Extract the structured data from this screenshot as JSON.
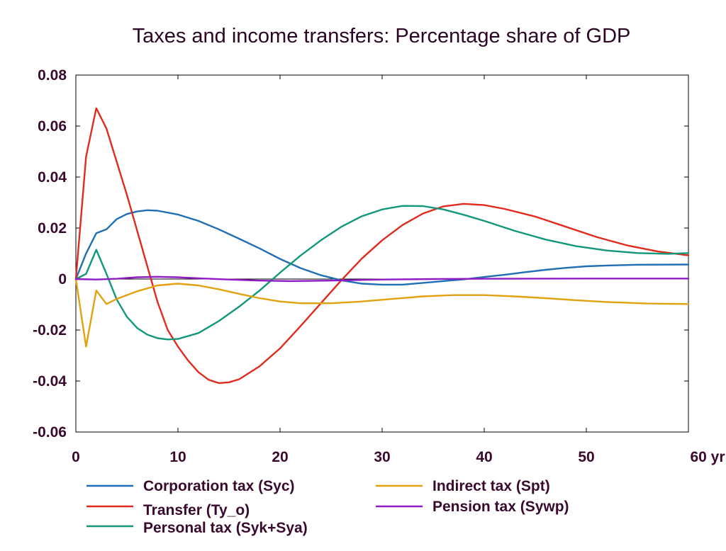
{
  "chart_data": {
    "type": "line",
    "title": "Taxes and income transfers: Percentage share of GDP",
    "xlabel": "",
    "ylabel": "",
    "xlim": [
      0,
      60
    ],
    "ylim": [
      -0.06,
      0.08
    ],
    "x_ticks": [
      0,
      10,
      20,
      30,
      40,
      50,
      60
    ],
    "x_tick_labels": [
      "0",
      "10",
      "20",
      "30",
      "40",
      "50",
      "60 yr"
    ],
    "y_ticks": [
      -0.06,
      -0.04,
      -0.02,
      0,
      0.02,
      0.04,
      0.06,
      0.08
    ],
    "y_tick_labels": [
      "-0.06",
      "-0.04",
      "-0.02",
      "0",
      "0.02",
      "0.04",
      "0.06",
      "0.08"
    ],
    "grid": false,
    "legend_position": "bottom",
    "series": [
      {
        "name": "Corporation tax (Syc)",
        "color": "#1f6fb4",
        "points": [
          [
            0,
            0
          ],
          [
            1,
            0.01
          ],
          [
            2,
            0.018
          ],
          [
            3,
            0.0195
          ],
          [
            4,
            0.0235
          ],
          [
            5,
            0.0255
          ],
          [
            6,
            0.0265
          ],
          [
            7,
            0.027
          ],
          [
            8,
            0.0268
          ],
          [
            10,
            0.0253
          ],
          [
            12,
            0.0228
          ],
          [
            14,
            0.0195
          ],
          [
            16,
            0.0158
          ],
          [
            18,
            0.012
          ],
          [
            20,
            0.0079
          ],
          [
            22,
            0.0043
          ],
          [
            24,
            0.0015
          ],
          [
            26,
            -0.0005
          ],
          [
            28,
            -0.0018
          ],
          [
            30,
            -0.0022
          ],
          [
            32,
            -0.0022
          ],
          [
            34,
            -0.0015
          ],
          [
            36,
            -0.0008
          ],
          [
            38,
            -0.0001
          ],
          [
            40,
            0.0008
          ],
          [
            42,
            0.0017
          ],
          [
            44,
            0.0027
          ],
          [
            46,
            0.0036
          ],
          [
            48,
            0.0044
          ],
          [
            50,
            0.005
          ],
          [
            52,
            0.0053
          ],
          [
            55,
            0.0056
          ],
          [
            60,
            0.0057
          ]
        ]
      },
      {
        "name": "Transfer (Ty_o)",
        "color": "#e02b1e",
        "points": [
          [
            0,
            0
          ],
          [
            1,
            0.048
          ],
          [
            2,
            0.067
          ],
          [
            3,
            0.059
          ],
          [
            4,
            0.046
          ],
          [
            5,
            0.033
          ],
          [
            6,
            0.019
          ],
          [
            7,
            0.005
          ],
          [
            8,
            -0.009
          ],
          [
            9,
            -0.02
          ],
          [
            10,
            -0.0265
          ],
          [
            11,
            -0.032
          ],
          [
            12,
            -0.0365
          ],
          [
            13,
            -0.0395
          ],
          [
            14,
            -0.0408
          ],
          [
            15,
            -0.0405
          ],
          [
            16,
            -0.0393
          ],
          [
            18,
            -0.0342
          ],
          [
            20,
            -0.0272
          ],
          [
            22,
            -0.0185
          ],
          [
            24,
            -0.0095
          ],
          [
            26,
            -0.0005
          ],
          [
            28,
            0.008
          ],
          [
            30,
            0.0152
          ],
          [
            32,
            0.0212
          ],
          [
            34,
            0.0257
          ],
          [
            36,
            0.0285
          ],
          [
            38,
            0.0295
          ],
          [
            40,
            0.029
          ],
          [
            42,
            0.0275
          ],
          [
            45,
            0.0245
          ],
          [
            48,
            0.0205
          ],
          [
            51,
            0.0165
          ],
          [
            54,
            0.0132
          ],
          [
            57,
            0.0108
          ],
          [
            60,
            0.0093
          ]
        ]
      },
      {
        "name": "Personal tax (Syk+Sya)",
        "color": "#12977a",
        "points": [
          [
            0,
            0
          ],
          [
            1,
            0.002
          ],
          [
            2,
            0.0115
          ],
          [
            3,
            0.002
          ],
          [
            4,
            -0.008
          ],
          [
            5,
            -0.0148
          ],
          [
            6,
            -0.0192
          ],
          [
            7,
            -0.0218
          ],
          [
            8,
            -0.0232
          ],
          [
            9,
            -0.0237
          ],
          [
            10,
            -0.0235
          ],
          [
            12,
            -0.0212
          ],
          [
            14,
            -0.0165
          ],
          [
            16,
            -0.0108
          ],
          [
            18,
            -0.0045
          ],
          [
            20,
            0.0025
          ],
          [
            22,
            0.0092
          ],
          [
            24,
            0.0152
          ],
          [
            26,
            0.0205
          ],
          [
            28,
            0.0246
          ],
          [
            30,
            0.0273
          ],
          [
            32,
            0.0287
          ],
          [
            34,
            0.0286
          ],
          [
            36,
            0.0273
          ],
          [
            38,
            0.0252
          ],
          [
            40,
            0.0228
          ],
          [
            43,
            0.0189
          ],
          [
            46,
            0.0155
          ],
          [
            49,
            0.0129
          ],
          [
            52,
            0.0112
          ],
          [
            55,
            0.0102
          ],
          [
            58,
            0.0099
          ],
          [
            60,
            0.0102
          ]
        ]
      },
      {
        "name": "Indirect tax (Spt)",
        "color": "#e0a20e",
        "points": [
          [
            0,
            0
          ],
          [
            1,
            -0.0265
          ],
          [
            2,
            -0.0045
          ],
          [
            3,
            -0.0098
          ],
          [
            4,
            -0.0078
          ],
          [
            6,
            -0.0048
          ],
          [
            8,
            -0.0025
          ],
          [
            10,
            -0.0018
          ],
          [
            12,
            -0.0025
          ],
          [
            14,
            -0.004
          ],
          [
            16,
            -0.0058
          ],
          [
            18,
            -0.0075
          ],
          [
            20,
            -0.0088
          ],
          [
            22,
            -0.0095
          ],
          [
            25,
            -0.0095
          ],
          [
            28,
            -0.0088
          ],
          [
            31,
            -0.0078
          ],
          [
            34,
            -0.0068
          ],
          [
            37,
            -0.0063
          ],
          [
            40,
            -0.0063
          ],
          [
            43,
            -0.0068
          ],
          [
            46,
            -0.0075
          ],
          [
            49,
            -0.0083
          ],
          [
            52,
            -0.009
          ],
          [
            56,
            -0.0096
          ],
          [
            60,
            -0.0098
          ]
        ]
      },
      {
        "name": "Pension tax (Sywp)",
        "color": "#8e1bc4",
        "points": [
          [
            0,
            0
          ],
          [
            2,
            -0.0002
          ],
          [
            4,
            0.0001
          ],
          [
            6,
            0.0007
          ],
          [
            8,
            0.0009
          ],
          [
            10,
            0.0007
          ],
          [
            12,
            0.0003
          ],
          [
            15,
            -0.0002
          ],
          [
            18,
            -0.0006
          ],
          [
            21,
            -0.0008
          ],
          [
            25,
            -0.0006
          ],
          [
            30,
            -0.0002
          ],
          [
            35,
            0
          ],
          [
            40,
            0.0001
          ],
          [
            50,
            0.0002
          ],
          [
            60,
            0.0002
          ]
        ]
      }
    ]
  }
}
